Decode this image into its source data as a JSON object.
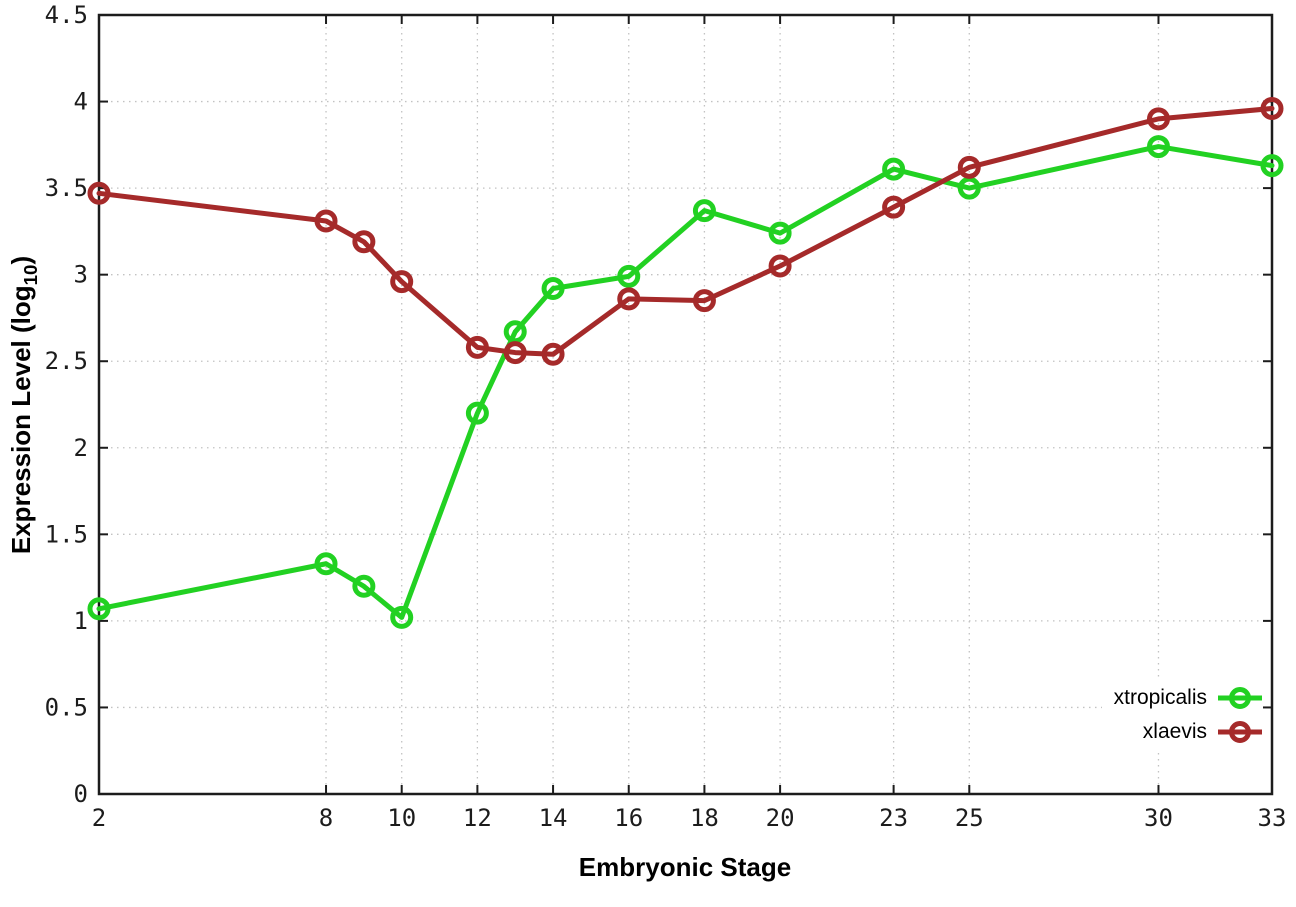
{
  "chart_data": {
    "type": "line",
    "title": "",
    "xlabel": "Embryonic Stage",
    "ylabel": "Expression Level (log10)",
    "ylabel_parts": {
      "main": "Expression Level (log",
      "sub": "10",
      "close": ")"
    },
    "x": [
      2,
      8,
      9,
      10,
      12,
      13,
      14,
      16,
      18,
      20,
      23,
      25,
      30,
      33
    ],
    "series": [
      {
        "name": "xtropicalis",
        "color": "#22d122",
        "values": [
          1.07,
          1.33,
          1.2,
          1.02,
          2.2,
          2.67,
          2.92,
          2.99,
          3.37,
          3.24,
          3.61,
          3.5,
          3.74,
          3.63
        ]
      },
      {
        "name": "xlaevis",
        "color": "#a52a2a",
        "values": [
          3.47,
          3.31,
          3.19,
          2.96,
          2.58,
          2.55,
          2.54,
          2.86,
          2.85,
          3.05,
          3.39,
          3.62,
          3.9,
          3.96
        ]
      }
    ],
    "xlim": [
      2,
      33
    ],
    "ylim": [
      0,
      4.5
    ],
    "x_ticks": [
      2,
      8,
      10,
      12,
      14,
      16,
      18,
      20,
      23,
      25,
      30,
      33
    ],
    "x_tick_labels": [
      "2",
      "8",
      "10",
      "12",
      "14",
      "16",
      "18",
      "20",
      "23",
      "25",
      "30",
      "33"
    ],
    "y_ticks": [
      0,
      0.5,
      1,
      1.5,
      2,
      2.5,
      3,
      3.5,
      4,
      4.5
    ],
    "y_tick_labels": [
      "0",
      "0.5",
      "1",
      "1.5",
      "2",
      "2.5",
      "3",
      "3.5",
      "4",
      "4.5"
    ],
    "grid": true,
    "legend_position": "inside-bottom-right",
    "marker": "open-circle"
  }
}
